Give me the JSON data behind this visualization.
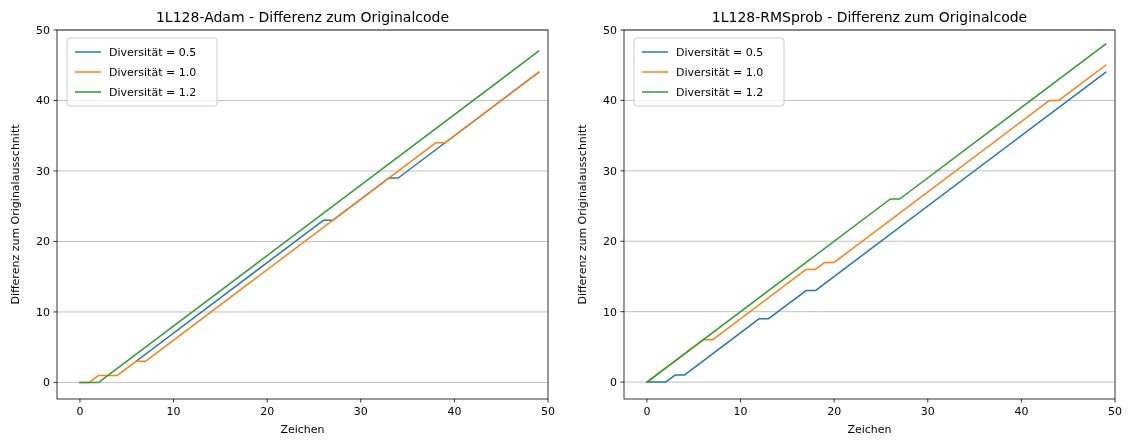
{
  "chart_data": [
    {
      "type": "line",
      "title": "1L128-Adam - Differenz zum Originalcode",
      "xlabel": "Zeichen",
      "ylabel": "Differenz zum Originalausschnitt",
      "xlim": [
        -2.45,
        50
      ],
      "ylim": [
        -2.35,
        50
      ],
      "xticks": [
        0,
        10,
        20,
        30,
        40,
        50
      ],
      "yticks": [
        0,
        10,
        20,
        30,
        40,
        50
      ],
      "grid": "y",
      "legend": "top left",
      "line_style": "solid",
      "series": [
        {
          "name": "Diversität = 0.5",
          "color": "#1f77b4",
          "x": [
            6,
            26,
            27,
            33,
            34,
            49
          ],
          "values": [
            3,
            23,
            23,
            29,
            29,
            44
          ]
        },
        {
          "name": "Diversität = 1.0",
          "color": "#ff7f0e",
          "x": [
            0,
            1,
            2,
            4,
            6,
            7,
            38,
            39,
            49
          ],
          "values": [
            0,
            0,
            1,
            1,
            3,
            3,
            34,
            34,
            44
          ]
        },
        {
          "name": "Diversität = 1.2",
          "color": "#2ca02c",
          "x": [
            0,
            2,
            49
          ],
          "values": [
            0,
            0,
            47
          ]
        }
      ]
    },
    {
      "type": "line",
      "title": "1L128-RMSprob - Differenz zum Originalcode",
      "xlabel": "Zeichen",
      "ylabel": "Differenz zum Originalausschnitt",
      "xlim": [
        -2.45,
        50
      ],
      "ylim": [
        -2.4,
        50
      ],
      "xticks": [
        0,
        10,
        20,
        30,
        40,
        50
      ],
      "yticks": [
        0,
        10,
        20,
        30,
        40,
        50
      ],
      "grid": "y",
      "legend": "top left",
      "line_style": "solid",
      "series": [
        {
          "name": "Diversität = 0.5",
          "color": "#1f77b4",
          "x": [
            0,
            2,
            3,
            4,
            12,
            13,
            17,
            18,
            49
          ],
          "values": [
            0,
            0,
            1,
            1,
            9,
            9,
            13,
            13,
            44
          ]
        },
        {
          "name": "Diversität = 1.0",
          "color": "#ff7f0e",
          "x": [
            0,
            6,
            7,
            17,
            18,
            19,
            20,
            43,
            44,
            49
          ],
          "values": [
            0,
            6,
            6,
            16,
            16,
            17,
            17,
            40,
            40,
            45
          ]
        },
        {
          "name": "Diversität = 1.2",
          "color": "#2ca02c",
          "x": [
            0,
            26,
            27,
            49
          ],
          "values": [
            0,
            26,
            26,
            48
          ]
        }
      ]
    }
  ]
}
